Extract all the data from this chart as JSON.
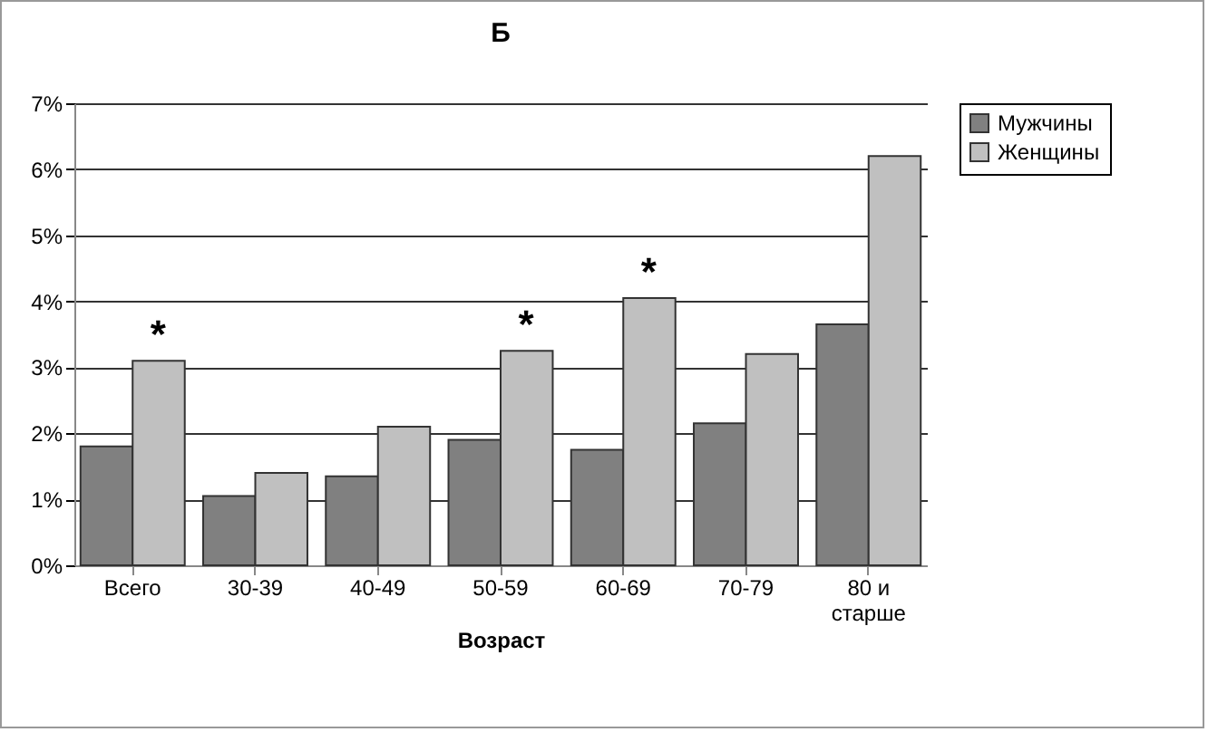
{
  "chart_data": {
    "type": "bar",
    "title": "Б",
    "xlabel": "Возраст",
    "categories": [
      "Всего",
      "30-39",
      "40-49",
      "50-59",
      "60-69",
      "70-79",
      "80 и старше"
    ],
    "series": [
      {
        "name": "Мужчины",
        "color": "#808080",
        "values": [
          1.8,
          1.05,
          1.35,
          1.9,
          1.75,
          2.15,
          3.65
        ]
      },
      {
        "name": "Женщины",
        "color": "#c0c0c0",
        "values": [
          3.1,
          1.4,
          2.1,
          3.25,
          4.05,
          3.2,
          6.2
        ]
      }
    ],
    "ylim": [
      0,
      7
    ],
    "yticks": [
      {
        "value": 0,
        "label": "0%"
      },
      {
        "value": 1,
        "label": "1%"
      },
      {
        "value": 2,
        "label": "2%"
      },
      {
        "value": 3,
        "label": "3%"
      },
      {
        "value": 4,
        "label": "4%"
      },
      {
        "value": 5,
        "label": "5%"
      },
      {
        "value": 6,
        "label": "6%"
      },
      {
        "value": 7,
        "label": "7%"
      }
    ],
    "grid": "y",
    "legend": "right",
    "annotations": [
      {
        "text": "*",
        "x": "Всего",
        "y": 3.1
      },
      {
        "text": "*",
        "x": "50-59",
        "y": 3.25
      },
      {
        "text": "*",
        "x": "60-69",
        "y": 4.05
      }
    ]
  }
}
